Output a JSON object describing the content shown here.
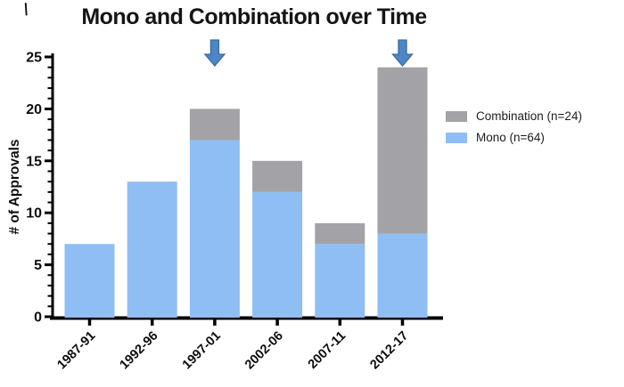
{
  "marks": {
    "top_left": "|"
  },
  "chart_data": {
    "type": "bar",
    "stacked": true,
    "title": "Mono and Combination over Time",
    "xlabel": "",
    "ylabel": "# of Approvals",
    "categories": [
      "1987-91",
      "1992-96",
      "1997-01",
      "2002-06",
      "2007-11",
      "2012-17"
    ],
    "series": [
      {
        "name": "Mono (n=64)",
        "color": "#8EBEF3",
        "values": [
          7,
          13,
          17,
          12,
          7,
          8
        ]
      },
      {
        "name": "Combination (n=24)",
        "color": "#A2A2A7",
        "values": [
          0,
          0,
          3,
          3,
          2,
          16
        ]
      }
    ],
    "ylim": [
      0,
      25
    ],
    "ytick_major": 5,
    "ytick_minor": 1,
    "grid": false,
    "legend_position": "right",
    "legend": [
      {
        "label": "Combination (n=24)",
        "color": "#A2A2A7"
      },
      {
        "label": "Mono (n=64)",
        "color": "#8EBEF3"
      }
    ],
    "annotations": [
      {
        "type": "down-arrow",
        "category": "1997-01",
        "color": "#4E86C6",
        "edge_color": "#3A6B9E"
      },
      {
        "type": "down-arrow",
        "category": "2012-17",
        "color": "#4E86C6",
        "edge_color": "#3A6B9E"
      }
    ],
    "axis_color": "#000000"
  }
}
